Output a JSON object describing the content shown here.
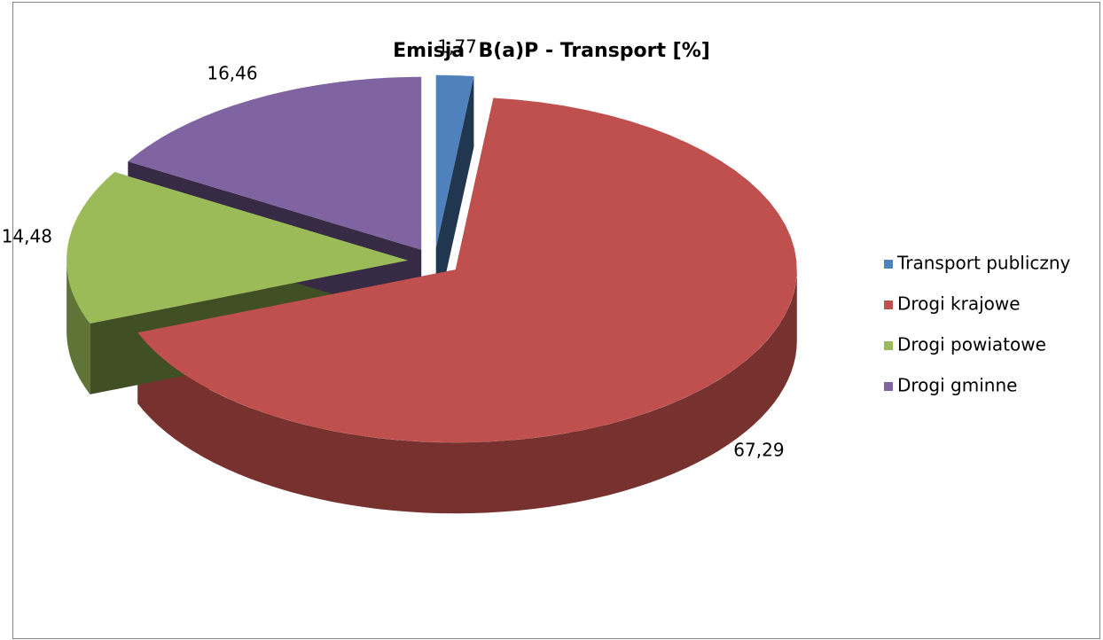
{
  "chart_data": {
    "type": "pie3d",
    "title": "Emisja  B(a)P - Transport [%]",
    "categories": [
      "Transport publiczny",
      "Drogi krajowe",
      "Drogi powiatowe",
      "Drogi gminne"
    ],
    "values": [
      1.77,
      67.29,
      14.48,
      16.46
    ],
    "value_labels": [
      "1,77",
      "67,29",
      "14,48",
      "16,46"
    ],
    "colors": [
      "#4f81bd",
      "#c0504d",
      "#9bbb59",
      "#8064a2"
    ],
    "legend": "right"
  }
}
